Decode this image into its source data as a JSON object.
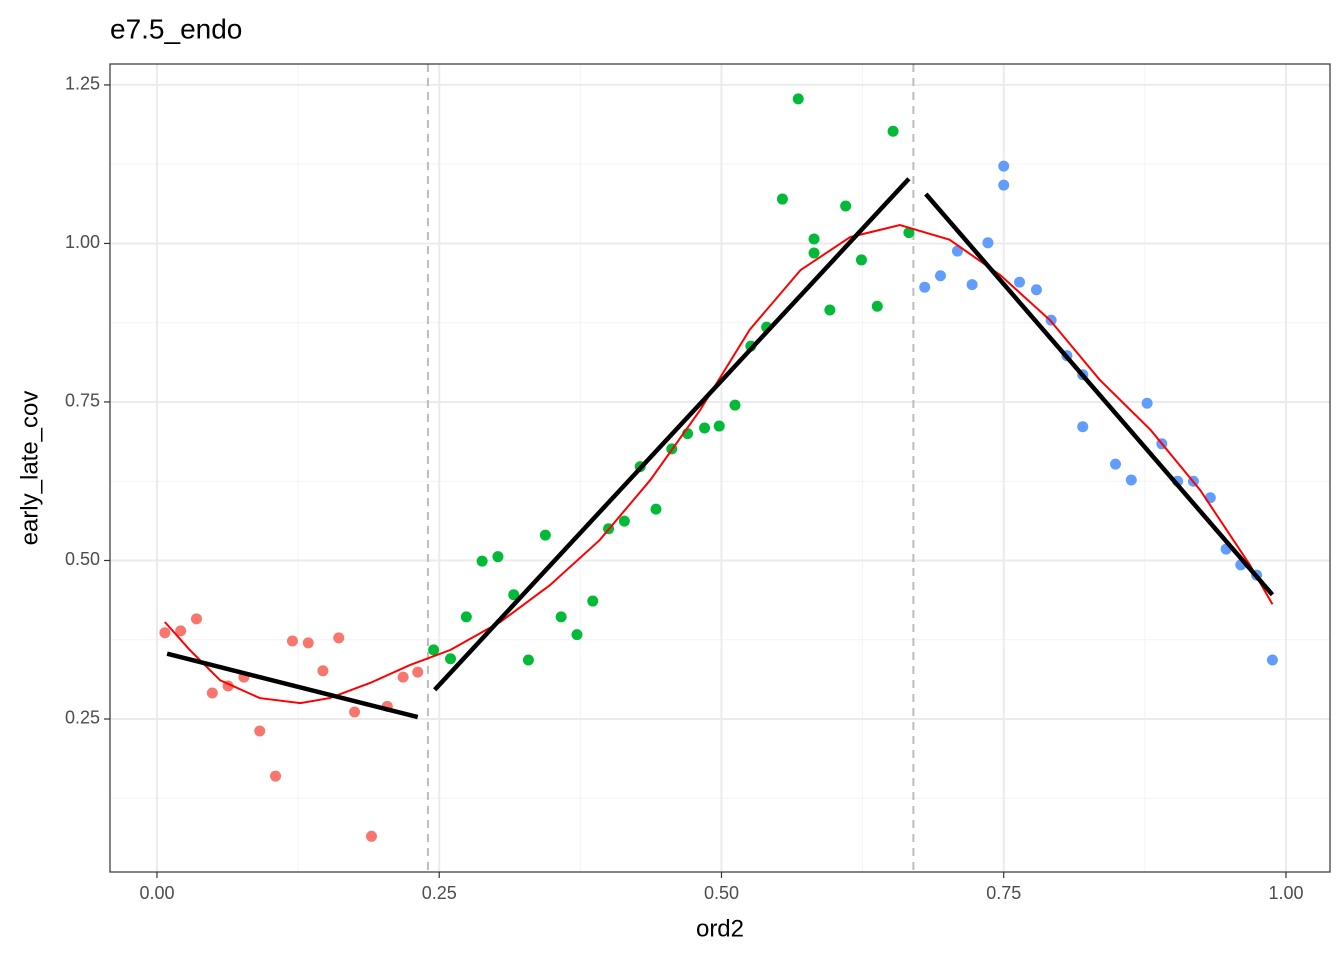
{
  "chart_data": {
    "type": "scatter",
    "title": "e7.5_endo",
    "x_label": "ord2",
    "y_label": "early_late_cov",
    "xlim": [
      -0.0416,
      1.039
    ],
    "ylim": [
      0.0087,
      1.283
    ],
    "xticks": [
      {
        "value": 0,
        "label": "0.00"
      },
      {
        "value": 0.25,
        "label": "0.25"
      },
      {
        "value": 0.5,
        "label": "0.50"
      },
      {
        "value": 0.75,
        "label": "0.75"
      },
      {
        "value": 1,
        "label": "1.00"
      }
    ],
    "yticks": [
      0.25,
      {
        "value": 0.5,
        "label": "0.50"
      },
      0.75,
      {
        "value": 1,
        "label": "1.00"
      },
      1.25
    ],
    "grid": true,
    "minor_grid": true,
    "series": [
      {
        "color": "#F8766D",
        "x": [
          0.007,
          0.021,
          0.035,
          0.049,
          0.063,
          0.077,
          0.091,
          0.105,
          0.12,
          0.134,
          0.147,
          0.161,
          0.175,
          0.19,
          0.204,
          0.218,
          0.231
        ],
        "y": [
          0.386,
          0.389,
          0.408,
          0.291,
          0.302,
          0.316,
          0.231,
          0.16,
          0.373,
          0.37,
          0.326,
          0.378,
          0.261,
          0.065,
          0.27,
          0.316,
          0.324
        ]
      },
      {
        "color": "#00BA38",
        "x": [
          0.245,
          0.26,
          0.274,
          0.288,
          0.302,
          0.316,
          0.329,
          0.344,
          0.358,
          0.372,
          0.386,
          0.4,
          0.414,
          0.428,
          0.442,
          0.456,
          0.47,
          0.485,
          0.498,
          0.512,
          0.526,
          0.54,
          0.554,
          0.568,
          0.582,
          0.582,
          0.596,
          0.61,
          0.624,
          0.638,
          0.652,
          0.666
        ],
        "y": [
          0.359,
          0.345,
          0.411,
          0.499,
          0.506,
          0.446,
          0.343,
          0.54,
          0.411,
          0.383,
          0.436,
          0.55,
          0.562,
          0.648,
          0.581,
          0.676,
          0.7,
          0.709,
          0.712,
          0.745,
          0.838,
          0.868,
          1.07,
          1.228,
          1.007,
          0.985,
          0.895,
          1.059,
          0.974,
          0.901,
          1.177,
          1.017
        ]
      },
      {
        "color": "#619CFF",
        "x": [
          0.68,
          0.694,
          0.709,
          0.722,
          0.736,
          0.75,
          0.75,
          0.764,
          0.779,
          0.792,
          0.806,
          0.82,
          0.82,
          0.849,
          0.863,
          0.877,
          0.89,
          0.904,
          0.918,
          0.933,
          0.947,
          0.96,
          0.974,
          0.988
        ],
        "y": [
          0.931,
          0.949,
          0.988,
          0.935,
          1.001,
          1.122,
          1.092,
          0.939,
          0.927,
          0.879,
          0.823,
          0.793,
          0.711,
          0.652,
          0.627,
          0.748,
          0.684,
          0.625,
          0.625,
          0.599,
          0.518,
          0.493,
          0.477,
          0.343
        ]
      }
    ],
    "vlines": [
      0.24,
      0.67
    ],
    "segments": [
      {
        "color": "#000000",
        "x": [
          0.009,
          0.231
        ],
        "y": [
          0.353,
          0.253
        ]
      },
      {
        "color": "#000000",
        "x": [
          0.246,
          0.666
        ],
        "y": [
          0.296,
          1.102
        ]
      },
      {
        "color": "#000000",
        "x": [
          0.681,
          0.988
        ],
        "y": [
          1.078,
          0.446
        ]
      }
    ],
    "smooth": {
      "color": "#FF0000",
      "x": [
        0.007,
        0.029,
        0.056,
        0.091,
        0.127,
        0.153,
        0.189,
        0.224,
        0.26,
        0.304,
        0.348,
        0.392,
        0.437,
        0.481,
        0.525,
        0.57,
        0.614,
        0.658,
        0.702,
        0.747,
        0.791,
        0.835,
        0.88,
        0.924,
        0.968,
        0.988
      ],
      "y": [
        0.403,
        0.359,
        0.311,
        0.283,
        0.275,
        0.283,
        0.307,
        0.335,
        0.359,
        0.403,
        0.461,
        0.532,
        0.627,
        0.737,
        0.864,
        0.958,
        1.01,
        1.029,
        1.006,
        0.95,
        0.879,
        0.785,
        0.706,
        0.611,
        0.493,
        0.431
      ]
    }
  }
}
